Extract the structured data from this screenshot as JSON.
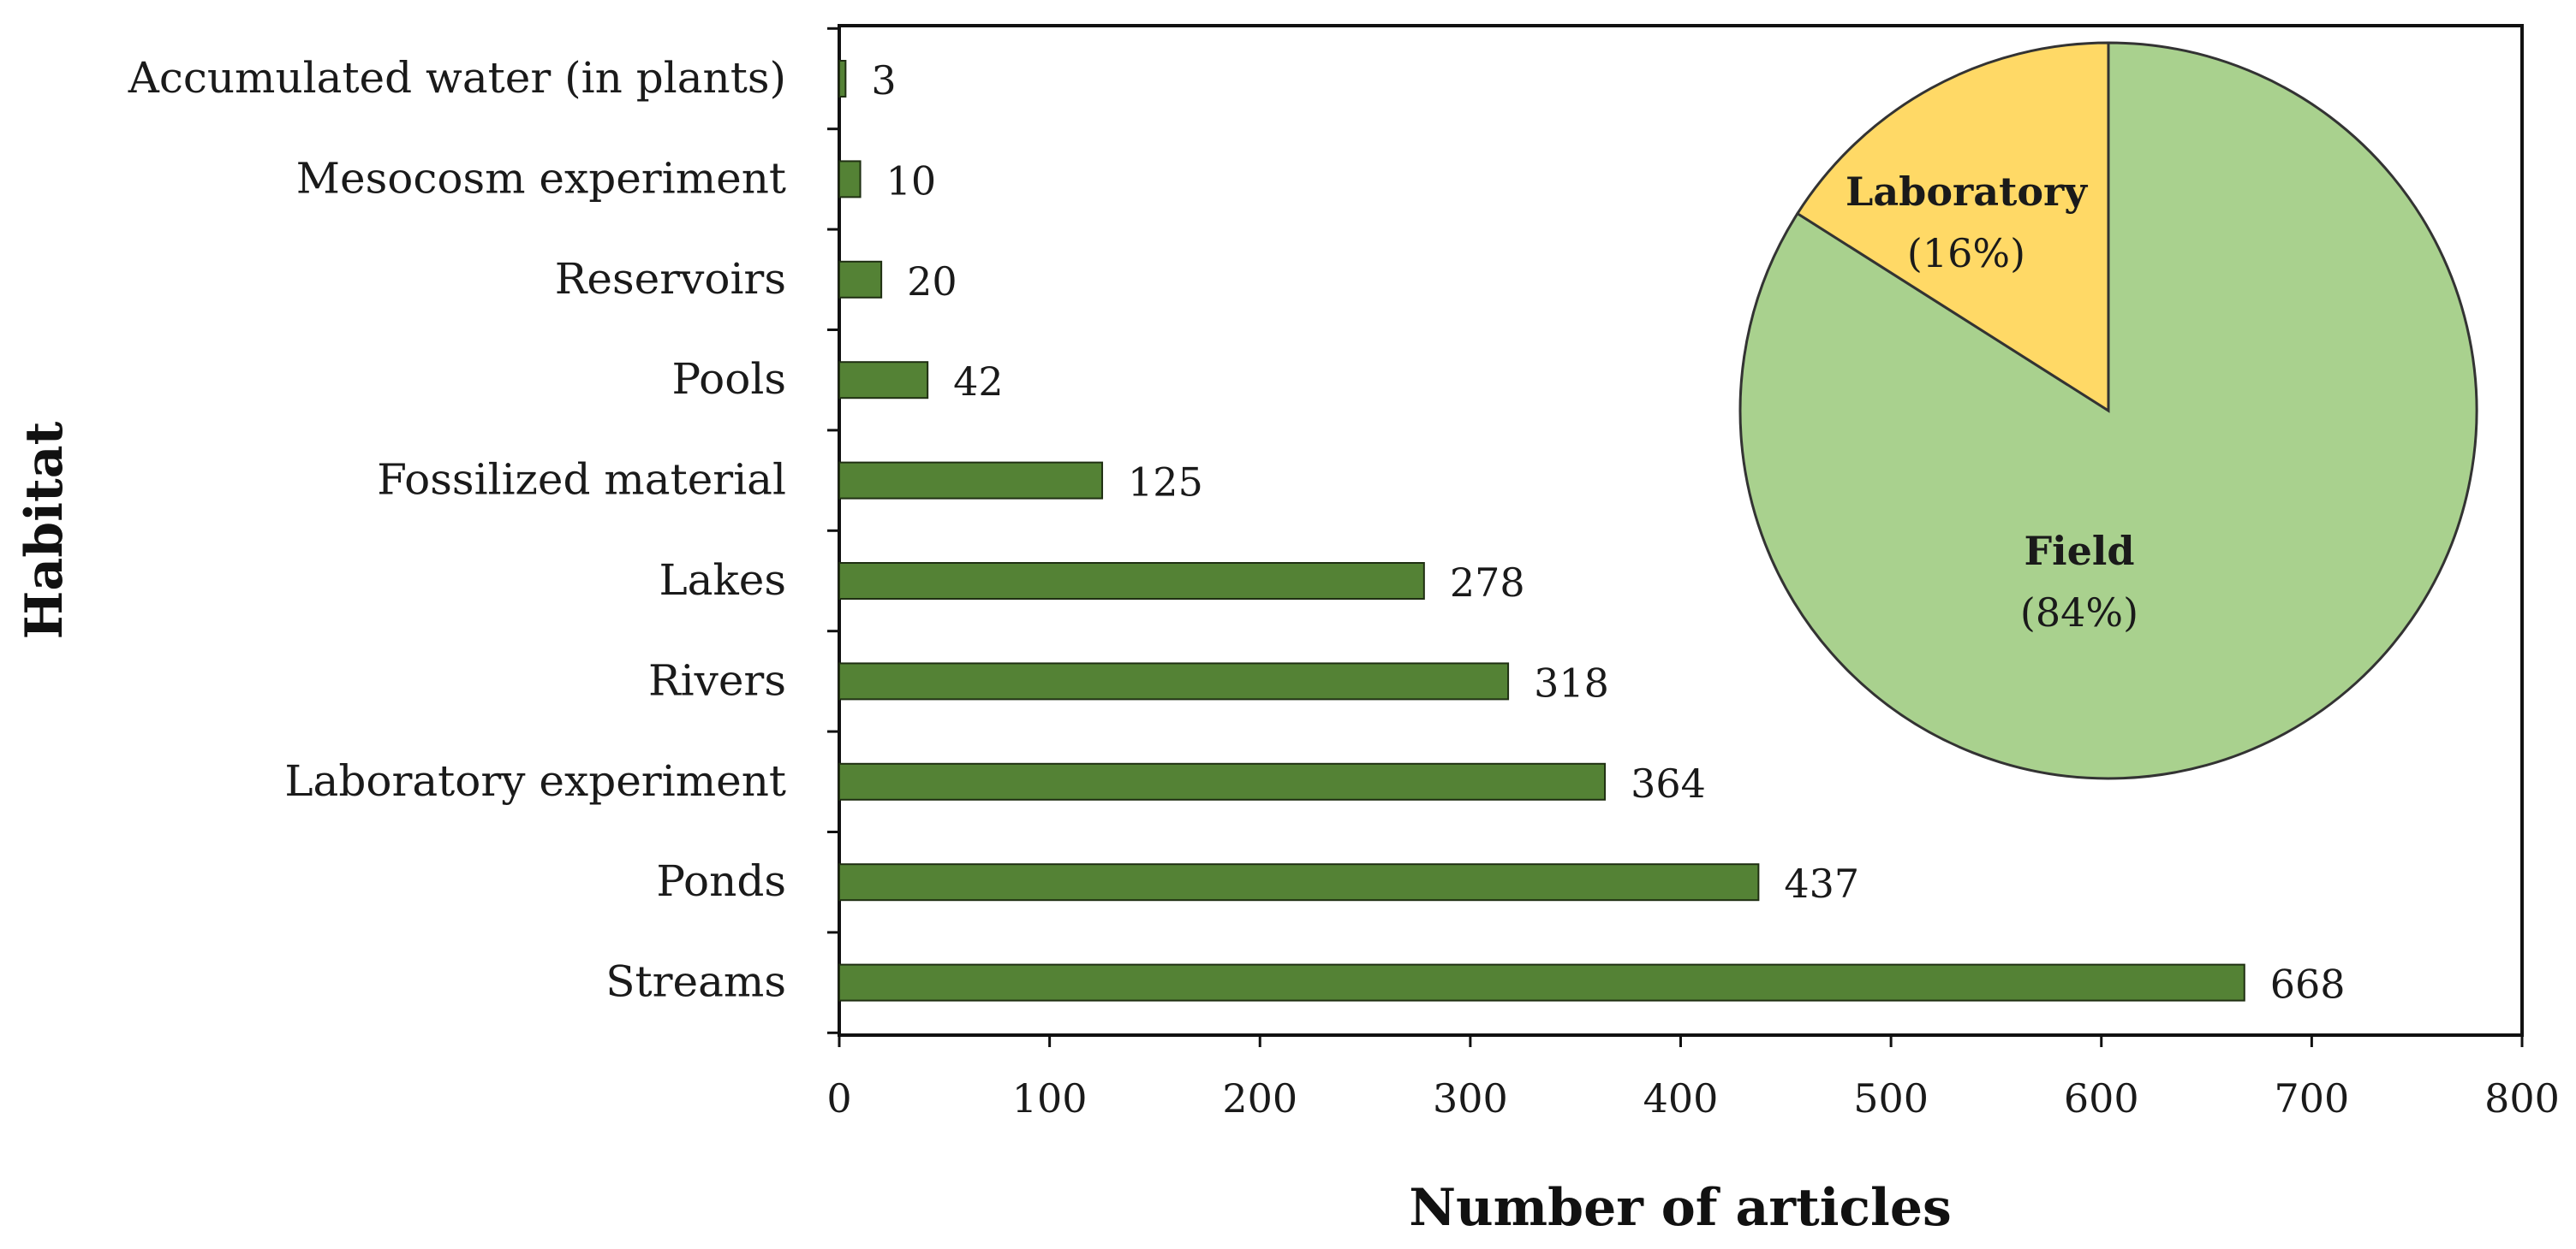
{
  "chart_data": [
    {
      "type": "bar",
      "orientation": "horizontal",
      "xlabel": "Number of articles",
      "ylabel": "Habitat",
      "xlim": [
        0,
        800
      ],
      "xticks": [
        "0",
        "100",
        "200",
        "300",
        "400",
        "500",
        "600",
        "700",
        "800"
      ],
      "grid": false,
      "bar_color": "#548235",
      "bar_edge_color": "#1f2f12",
      "categories": [
        "Accumulated water (in plants)",
        "Mesocosm experiment",
        "Reservoirs",
        "Pools",
        "Fossilized material",
        "Lakes",
        "Rivers",
        "Laboratory experiment",
        "Ponds",
        "Streams"
      ],
      "values": [
        3,
        10,
        20,
        42,
        125,
        278,
        318,
        364,
        437,
        668
      ],
      "value_labels": [
        "3",
        "10",
        "20",
        "42",
        "125",
        "278",
        "318",
        "364",
        "437",
        "668"
      ]
    },
    {
      "type": "pie",
      "slices": [
        {
          "label": "Field",
          "percent_label": "(84%)",
          "value": 84,
          "color": "#a9d18e"
        },
        {
          "label": "Laboratory",
          "percent_label": "(16%)",
          "value": 16,
          "color": "#ffd966"
        }
      ]
    }
  ]
}
